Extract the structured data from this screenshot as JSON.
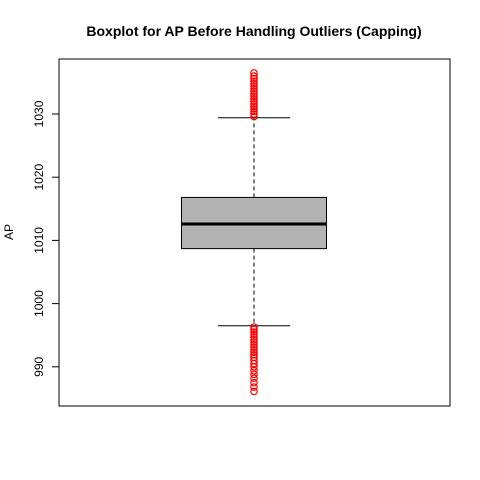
{
  "chart_data": {
    "type": "box",
    "title": "Boxplot for AP Before Handling Outliers (Capping)",
    "ylabel": "AP",
    "ylim": [
      983.8,
      1038.7
    ],
    "yticks": [
      990,
      1000,
      1010,
      1020,
      1030
    ],
    "box_color": "#b3b3b3",
    "outlier_color": "#ff0000",
    "whisker_low": 996.5,
    "q1": 1008.7,
    "median": 1012.6,
    "q3": 1016.8,
    "whisker_high": 1029.4,
    "outliers": [
      1029.6,
      1030.0,
      1030.4,
      1030.8,
      1031.2,
      1031.6,
      1032.0,
      1032.4,
      1032.8,
      1033.2,
      1033.6,
      1034.0,
      1034.4,
      1034.8,
      1035.2,
      1035.6,
      1036.0,
      1036.5,
      996.3,
      995.9,
      995.5,
      995.1,
      994.7,
      994.3,
      993.9,
      993.5,
      993.1,
      992.7,
      992.3,
      991.9,
      991.5,
      991.0,
      990.5,
      990.0,
      989.4,
      988.8,
      988.2,
      987.5,
      986.8,
      986.1
    ]
  }
}
